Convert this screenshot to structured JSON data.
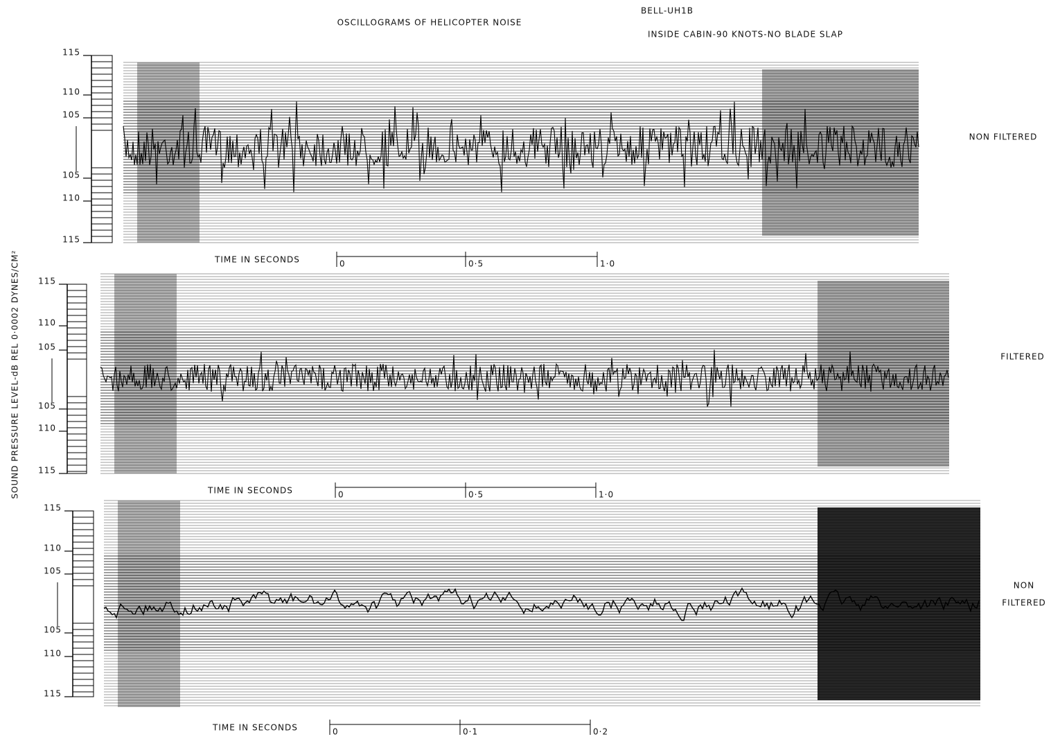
{
  "title": "OSCILLOGRAMS OF HELICOPTER NOISE",
  "aircraft": "BELL-UH1B",
  "condition": "INSIDE CABIN-90 KNOTS-NO BLADE SLAP",
  "y_axis_label": "SOUND PRESSURE LEVEL-dB REL 0·0002 DYNES/CM²",
  "panels": [
    {
      "label_lines": [
        "NON FILTERED"
      ],
      "scale_labels": [
        "115",
        "110",
        "105",
        "105",
        "110",
        "115"
      ],
      "time_label": "TIME IN SECONDS",
      "time_ticks": [
        "0",
        "0·5",
        "1·0"
      ]
    },
    {
      "label_lines": [
        "FILTERED"
      ],
      "scale_labels": [
        "115",
        "110",
        "105",
        "105",
        "110",
        "115"
      ],
      "time_label": "TIME IN SECONDS",
      "time_ticks": [
        "0",
        "0·5",
        "1·0"
      ]
    },
    {
      "label_lines": [
        "NON",
        "FILTERED"
      ],
      "scale_labels": [
        "115",
        "110",
        "105",
        "105",
        "110",
        "115"
      ],
      "time_label": "TIME IN SECONDS",
      "time_ticks": [
        "0",
        "0·1",
        "0·2"
      ]
    }
  ]
}
